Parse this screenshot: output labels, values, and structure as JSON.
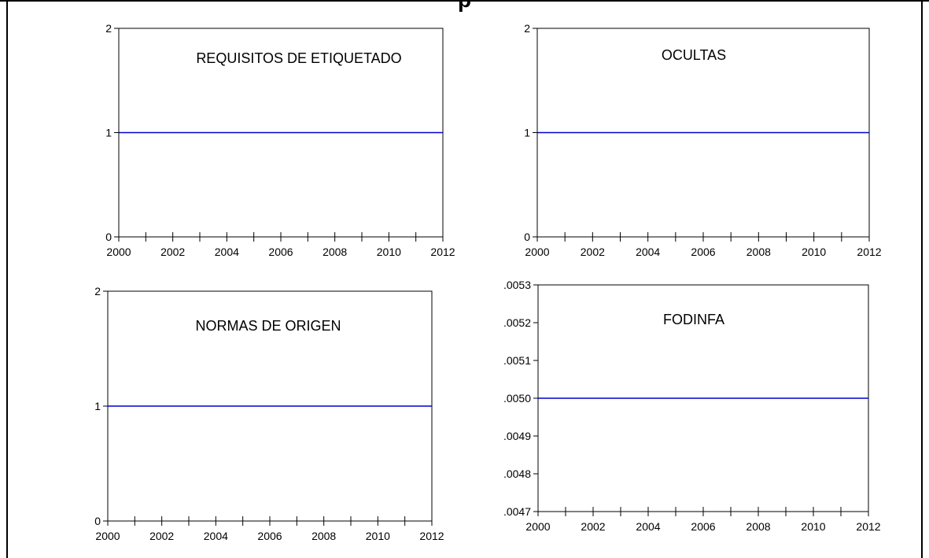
{
  "page": {
    "title": "p"
  },
  "chart_data": [
    {
      "type": "line",
      "title": "REQUISITOS DE ETIQUETADO",
      "x": [
        2000,
        2001,
        2002,
        2003,
        2004,
        2005,
        2006,
        2007,
        2008,
        2009,
        2010,
        2011,
        2012
      ],
      "series": [
        {
          "values": [
            1,
            1,
            1,
            1,
            1,
            1,
            1,
            1,
            1,
            1,
            1,
            1,
            1
          ],
          "color": "#0000cc"
        }
      ],
      "xlim": [
        2000,
        2012
      ],
      "ylim": [
        0,
        2
      ],
      "xticks": [
        2000,
        2002,
        2004,
        2006,
        2008,
        2010,
        2012
      ],
      "yticks": [
        "0",
        "1",
        "2"
      ],
      "grid": false
    },
    {
      "type": "line",
      "title": "OCULTAS",
      "x": [
        2000,
        2001,
        2002,
        2003,
        2004,
        2005,
        2006,
        2007,
        2008,
        2009,
        2010,
        2011,
        2012
      ],
      "series": [
        {
          "values": [
            1,
            1,
            1,
            1,
            1,
            1,
            1,
            1,
            1,
            1,
            1,
            1,
            1
          ],
          "color": "#0000cc"
        }
      ],
      "xlim": [
        2000,
        2012
      ],
      "ylim": [
        0,
        2
      ],
      "xticks": [
        2000,
        2002,
        2004,
        2006,
        2008,
        2010,
        2012
      ],
      "yticks": [
        "0",
        "1",
        "2"
      ],
      "grid": false
    },
    {
      "type": "line",
      "title": "NORMAS DE ORIGEN",
      "x": [
        2000,
        2001,
        2002,
        2003,
        2004,
        2005,
        2006,
        2007,
        2008,
        2009,
        2010,
        2011,
        2012
      ],
      "series": [
        {
          "values": [
            1,
            1,
            1,
            1,
            1,
            1,
            1,
            1,
            1,
            1,
            1,
            1,
            1
          ],
          "color": "#0000cc"
        }
      ],
      "xlim": [
        2000,
        2012
      ],
      "ylim": [
        0,
        2
      ],
      "xticks": [
        2000,
        2002,
        2004,
        2006,
        2008,
        2010,
        2012
      ],
      "yticks": [
        "0",
        "1",
        "2"
      ],
      "grid": false
    },
    {
      "type": "line",
      "title": "FODINFA",
      "x": [
        2000,
        2001,
        2002,
        2003,
        2004,
        2005,
        2006,
        2007,
        2008,
        2009,
        2010,
        2011,
        2012
      ],
      "series": [
        {
          "values": [
            0.005,
            0.005,
            0.005,
            0.005,
            0.005,
            0.005,
            0.005,
            0.005,
            0.005,
            0.005,
            0.005,
            0.005,
            0.005
          ],
          "color": "#0000cc"
        }
      ],
      "xlim": [
        2000,
        2012
      ],
      "ylim": [
        0.0047,
        0.0053
      ],
      "xticks": [
        2000,
        2002,
        2004,
        2006,
        2008,
        2010,
        2012
      ],
      "yticks": [
        ".0047",
        ".0048",
        ".0049",
        ".0050",
        ".0051",
        ".0052",
        ".0053"
      ],
      "grid": false
    }
  ]
}
